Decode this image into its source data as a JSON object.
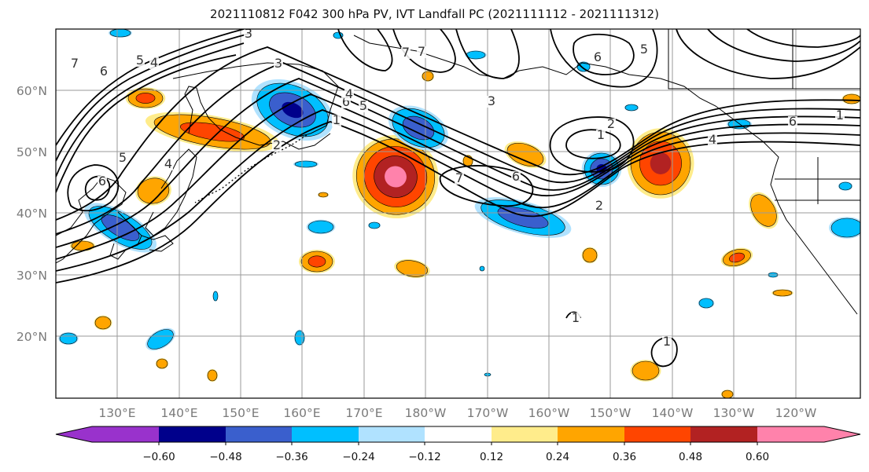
{
  "title": "2021110812 F042 300 hPa PV, IVT Landfall PC (2021111112 - 2021111312)",
  "lat_labels": [
    "60°N",
    "50°N",
    "40°N",
    "30°N",
    "20°N"
  ],
  "lon_labels": [
    "130°E",
    "140°E",
    "150°E",
    "160°E",
    "170°E",
    "180°W",
    "170°W",
    "160°W",
    "150°W",
    "140°W",
    "130°W",
    "120°W"
  ],
  "colorbar": {
    "tick_labels": [
      "−0.60",
      "−0.48",
      "−0.36",
      "−0.24",
      "−0.12",
      "0.12",
      "0.24",
      "0.36",
      "0.48",
      "0.60"
    ],
    "colors": [
      "#9932cc",
      "#00008b",
      "#3a5fcd",
      "#00bfff",
      "#b0e2ff",
      "#ffffff",
      "#ffec8b",
      "#ffa500",
      "#ff4500",
      "#b22222",
      "#ff82ab"
    ]
  },
  "contour_labels": [
    "7",
    "6",
    "5",
    "4",
    "3",
    "3",
    "2",
    "4",
    "5",
    "6",
    "1",
    "7",
    "7",
    "6",
    "5",
    "3",
    "2",
    "1",
    "2",
    "6",
    "4",
    "1",
    "6",
    "6",
    "5",
    "4",
    "7",
    "1",
    "1"
  ]
}
